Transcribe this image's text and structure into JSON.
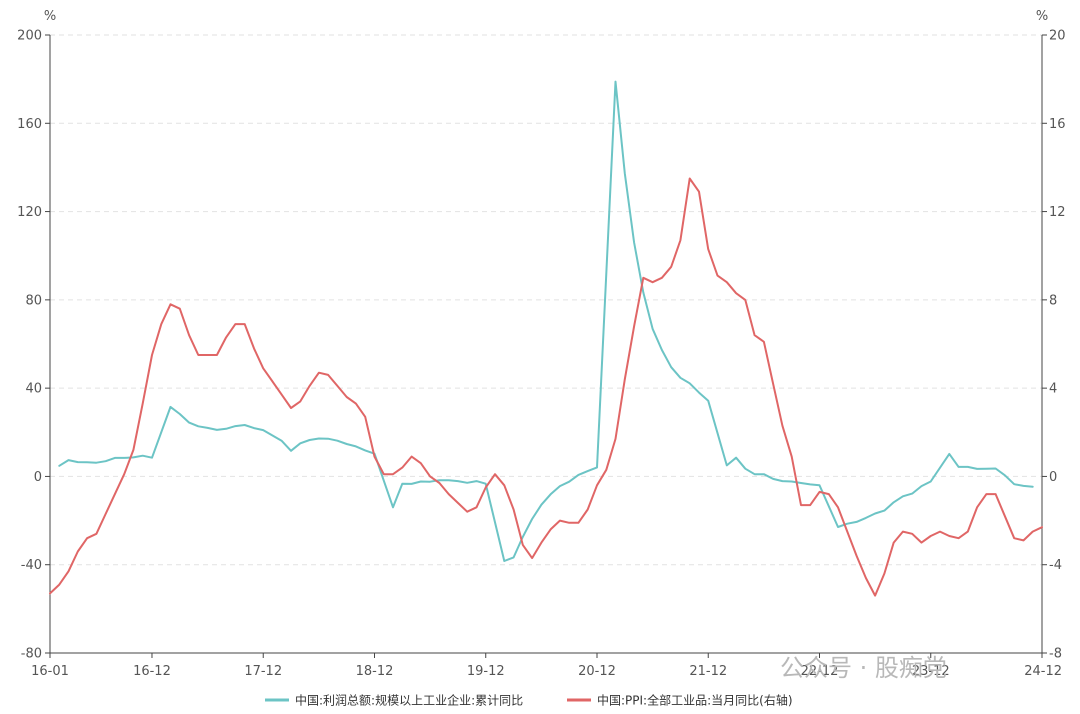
{
  "colors": {
    "series1": "#6cc4c5",
    "series2": "#e06666",
    "grid": "#e2e2e2",
    "axis": "#444444",
    "text": "#555555"
  },
  "watermark": "公众号 · 股痴党",
  "chart_data": {
    "type": "line",
    "y_left": {
      "unit": "%",
      "min": -80,
      "max": 200,
      "ticks": [
        -80,
        -40,
        0,
        40,
        80,
        120,
        160,
        200
      ]
    },
    "y_right": {
      "unit": "%",
      "min": -8,
      "max": 20,
      "ticks": [
        -8,
        -4,
        0,
        4,
        8,
        12,
        16,
        20
      ]
    },
    "x": {
      "start": "2016-01",
      "end": "2024-12",
      "ticks": [
        {
          "label": "16-01",
          "month": 0
        },
        {
          "label": "16-12",
          "month": 11
        },
        {
          "label": "17-12",
          "month": 23
        },
        {
          "label": "18-12",
          "month": 35
        },
        {
          "label": "19-12",
          "month": 47
        },
        {
          "label": "20-12",
          "month": 59
        },
        {
          "label": "21-12",
          "month": 71
        },
        {
          "label": "22-12",
          "month": 83
        },
        {
          "label": "23-12",
          "month": 95
        },
        {
          "label": "24-12",
          "month": 107
        }
      ]
    },
    "grid": true,
    "legend_position": "bottom",
    "series": [
      {
        "name": "中国:利润总额:规模以上工业企业:累计同比",
        "axis": "left",
        "points": [
          [
            "2016-02",
            4.8
          ],
          [
            "2016-03",
            7.4
          ],
          [
            "2016-04",
            6.5
          ],
          [
            "2016-05",
            6.4
          ],
          [
            "2016-06",
            6.2
          ],
          [
            "2016-07",
            6.9
          ],
          [
            "2016-08",
            8.4
          ],
          [
            "2016-09",
            8.4
          ],
          [
            "2016-10",
            8.6
          ],
          [
            "2016-11",
            9.4
          ],
          [
            "2016-12",
            8.5
          ],
          [
            "2017-02",
            31.5
          ],
          [
            "2017-03",
            28.3
          ],
          [
            "2017-04",
            24.4
          ],
          [
            "2017-05",
            22.7
          ],
          [
            "2017-06",
            22.0
          ],
          [
            "2017-07",
            21.1
          ],
          [
            "2017-08",
            21.6
          ],
          [
            "2017-09",
            22.8
          ],
          [
            "2017-10",
            23.3
          ],
          [
            "2017-11",
            21.9
          ],
          [
            "2017-12",
            21.0
          ],
          [
            "2018-02",
            16.1
          ],
          [
            "2018-03",
            11.6
          ],
          [
            "2018-04",
            15.0
          ],
          [
            "2018-05",
            16.5
          ],
          [
            "2018-06",
            17.2
          ],
          [
            "2018-07",
            17.1
          ],
          [
            "2018-08",
            16.2
          ],
          [
            "2018-09",
            14.7
          ],
          [
            "2018-10",
            13.6
          ],
          [
            "2018-11",
            11.8
          ],
          [
            "2018-12",
            10.3
          ],
          [
            "2019-02",
            -14.0
          ],
          [
            "2019-03",
            -3.3
          ],
          [
            "2019-04",
            -3.4
          ],
          [
            "2019-05",
            -2.3
          ],
          [
            "2019-06",
            -2.4
          ],
          [
            "2019-07",
            -1.7
          ],
          [
            "2019-08",
            -1.7
          ],
          [
            "2019-09",
            -2.1
          ],
          [
            "2019-10",
            -2.9
          ],
          [
            "2019-11",
            -2.1
          ],
          [
            "2019-12",
            -3.3
          ],
          [
            "2020-02",
            -38.3
          ],
          [
            "2020-03",
            -36.7
          ],
          [
            "2020-04",
            -27.4
          ],
          [
            "2020-05",
            -19.3
          ],
          [
            "2020-06",
            -12.8
          ],
          [
            "2020-07",
            -8.1
          ],
          [
            "2020-08",
            -4.4
          ],
          [
            "2020-09",
            -2.4
          ],
          [
            "2020-10",
            0.7
          ],
          [
            "2020-11",
            2.4
          ],
          [
            "2020-12",
            4.1
          ],
          [
            "2021-02",
            178.9
          ],
          [
            "2021-03",
            137.3
          ],
          [
            "2021-04",
            106.0
          ],
          [
            "2021-05",
            83.4
          ],
          [
            "2021-06",
            66.9
          ],
          [
            "2021-07",
            57.3
          ],
          [
            "2021-08",
            49.5
          ],
          [
            "2021-09",
            44.7
          ],
          [
            "2021-10",
            42.2
          ],
          [
            "2021-11",
            38.0
          ],
          [
            "2021-12",
            34.3
          ],
          [
            "2022-02",
            5.0
          ],
          [
            "2022-03",
            8.5
          ],
          [
            "2022-04",
            3.5
          ],
          [
            "2022-05",
            1.0
          ],
          [
            "2022-06",
            1.0
          ],
          [
            "2022-07",
            -1.1
          ],
          [
            "2022-08",
            -2.1
          ],
          [
            "2022-09",
            -2.3
          ],
          [
            "2022-10",
            -3.0
          ],
          [
            "2022-11",
            -3.6
          ],
          [
            "2022-12",
            -4.0
          ],
          [
            "2023-02",
            -22.9
          ],
          [
            "2023-03",
            -21.4
          ],
          [
            "2023-04",
            -20.6
          ],
          [
            "2023-05",
            -18.8
          ],
          [
            "2023-06",
            -16.8
          ],
          [
            "2023-07",
            -15.5
          ],
          [
            "2023-08",
            -11.7
          ],
          [
            "2023-09",
            -9.0
          ],
          [
            "2023-10",
            -7.8
          ],
          [
            "2023-11",
            -4.4
          ],
          [
            "2023-12",
            -2.3
          ],
          [
            "2024-02",
            10.2
          ],
          [
            "2024-03",
            4.3
          ],
          [
            "2024-04",
            4.3
          ],
          [
            "2024-05",
            3.4
          ],
          [
            "2024-06",
            3.5
          ],
          [
            "2024-07",
            3.6
          ],
          [
            "2024-08",
            0.5
          ],
          [
            "2024-09",
            -3.5
          ],
          [
            "2024-10",
            -4.3
          ],
          [
            "2024-11",
            -4.7
          ]
        ]
      },
      {
        "name": "中国:PPI:全部工业品:当月同比(右轴)",
        "axis": "right",
        "points": [
          [
            "2016-01",
            -5.3
          ],
          [
            "2016-02",
            -4.9
          ],
          [
            "2016-03",
            -4.3
          ],
          [
            "2016-04",
            -3.4
          ],
          [
            "2016-05",
            -2.8
          ],
          [
            "2016-06",
            -2.6
          ],
          [
            "2016-07",
            -1.7
          ],
          [
            "2016-08",
            -0.8
          ],
          [
            "2016-09",
            0.1
          ],
          [
            "2016-10",
            1.2
          ],
          [
            "2016-11",
            3.3
          ],
          [
            "2016-12",
            5.5
          ],
          [
            "2017-01",
            6.9
          ],
          [
            "2017-02",
            7.8
          ],
          [
            "2017-03",
            7.6
          ],
          [
            "2017-04",
            6.4
          ],
          [
            "2017-05",
            5.5
          ],
          [
            "2017-06",
            5.5
          ],
          [
            "2017-07",
            5.5
          ],
          [
            "2017-08",
            6.3
          ],
          [
            "2017-09",
            6.9
          ],
          [
            "2017-10",
            6.9
          ],
          [
            "2017-11",
            5.8
          ],
          [
            "2017-12",
            4.9
          ],
          [
            "2018-01",
            4.3
          ],
          [
            "2018-02",
            3.7
          ],
          [
            "2018-03",
            3.1
          ],
          [
            "2018-04",
            3.4
          ],
          [
            "2018-05",
            4.1
          ],
          [
            "2018-06",
            4.7
          ],
          [
            "2018-07",
            4.6
          ],
          [
            "2018-08",
            4.1
          ],
          [
            "2018-09",
            3.6
          ],
          [
            "2018-10",
            3.3
          ],
          [
            "2018-11",
            2.7
          ],
          [
            "2018-12",
            0.9
          ],
          [
            "2019-01",
            0.1
          ],
          [
            "2019-02",
            0.1
          ],
          [
            "2019-03",
            0.4
          ],
          [
            "2019-04",
            0.9
          ],
          [
            "2019-05",
            0.6
          ],
          [
            "2019-06",
            0.0
          ],
          [
            "2019-07",
            -0.3
          ],
          [
            "2019-08",
            -0.8
          ],
          [
            "2019-09",
            -1.2
          ],
          [
            "2019-10",
            -1.6
          ],
          [
            "2019-11",
            -1.4
          ],
          [
            "2019-12",
            -0.5
          ],
          [
            "2020-01",
            0.1
          ],
          [
            "2020-02",
            -0.4
          ],
          [
            "2020-03",
            -1.5
          ],
          [
            "2020-04",
            -3.1
          ],
          [
            "2020-05",
            -3.7
          ],
          [
            "2020-06",
            -3.0
          ],
          [
            "2020-07",
            -2.4
          ],
          [
            "2020-08",
            -2.0
          ],
          [
            "2020-09",
            -2.1
          ],
          [
            "2020-10",
            -2.1
          ],
          [
            "2020-11",
            -1.5
          ],
          [
            "2020-12",
            -0.4
          ],
          [
            "2021-01",
            0.3
          ],
          [
            "2021-02",
            1.7
          ],
          [
            "2021-03",
            4.4
          ],
          [
            "2021-04",
            6.8
          ],
          [
            "2021-05",
            9.0
          ],
          [
            "2021-06",
            8.8
          ],
          [
            "2021-07",
            9.0
          ],
          [
            "2021-08",
            9.5
          ],
          [
            "2021-09",
            10.7
          ],
          [
            "2021-10",
            13.5
          ],
          [
            "2021-11",
            12.9
          ],
          [
            "2021-12",
            10.3
          ],
          [
            "2022-01",
            9.1
          ],
          [
            "2022-02",
            8.8
          ],
          [
            "2022-03",
            8.3
          ],
          [
            "2022-04",
            8.0
          ],
          [
            "2022-05",
            6.4
          ],
          [
            "2022-06",
            6.1
          ],
          [
            "2022-07",
            4.2
          ],
          [
            "2022-08",
            2.3
          ],
          [
            "2022-09",
            0.9
          ],
          [
            "2022-10",
            -1.3
          ],
          [
            "2022-11",
            -1.3
          ],
          [
            "2022-12",
            -0.7
          ],
          [
            "2023-01",
            -0.8
          ],
          [
            "2023-02",
            -1.4
          ],
          [
            "2023-03",
            -2.5
          ],
          [
            "2023-04",
            -3.6
          ],
          [
            "2023-05",
            -4.6
          ],
          [
            "2023-06",
            -5.4
          ],
          [
            "2023-07",
            -4.4
          ],
          [
            "2023-08",
            -3.0
          ],
          [
            "2023-09",
            -2.5
          ],
          [
            "2023-10",
            -2.6
          ],
          [
            "2023-11",
            -3.0
          ],
          [
            "2023-12",
            -2.7
          ],
          [
            "2024-01",
            -2.5
          ],
          [
            "2024-02",
            -2.7
          ],
          [
            "2024-03",
            -2.8
          ],
          [
            "2024-04",
            -2.5
          ],
          [
            "2024-05",
            -1.4
          ],
          [
            "2024-06",
            -0.8
          ],
          [
            "2024-07",
            -0.8
          ],
          [
            "2024-08",
            -1.8
          ],
          [
            "2024-09",
            -2.8
          ],
          [
            "2024-10",
            -2.9
          ],
          [
            "2024-11",
            -2.5
          ],
          [
            "2024-12",
            -2.3
          ]
        ]
      }
    ]
  }
}
